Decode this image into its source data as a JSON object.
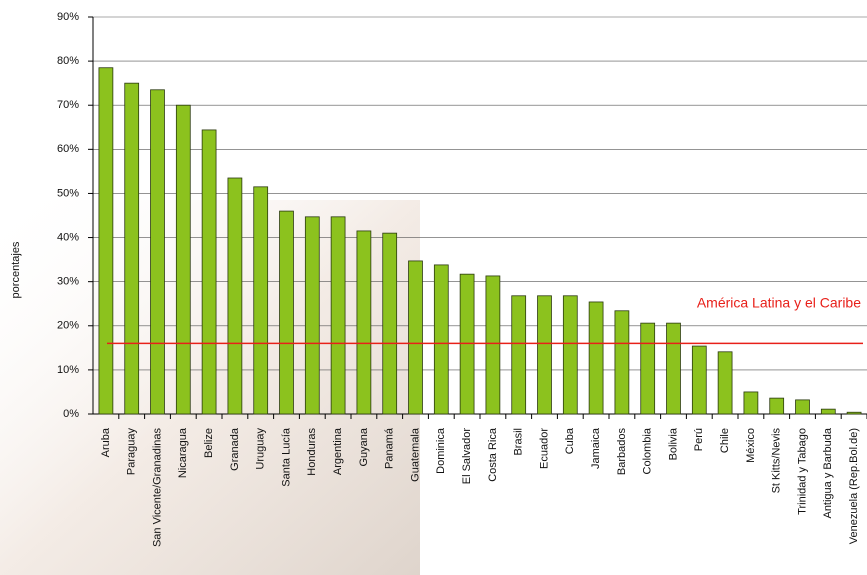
{
  "chart_data": {
    "type": "bar",
    "y_label": "porcentajes",
    "categories": [
      "Aruba",
      "Paraguay",
      "San Vicente/Granadinas",
      "Nicaragua",
      "Belize",
      "Granada",
      "Uruguay",
      "Santa Lucía",
      "Honduras",
      "Argentina",
      "Guyana",
      "Panamá",
      "Guatemala",
      "Dominica",
      "El Salvador",
      "Costa Rica",
      "Brasil",
      "Ecuador",
      "Cuba",
      "Jamaica",
      "Barbados",
      "Colombia",
      "Bolivia",
      "Perú",
      "Chile",
      "México",
      "St Kitts/Nevis",
      "Trinidad y Tabago",
      "Antigua y Barbuda",
      "Venezuela (Rep.Bol.de)"
    ],
    "values": [
      78.5,
      75,
      73.5,
      70,
      64.4,
      53.5,
      51.5,
      46,
      44.7,
      44.7,
      41.5,
      41,
      34.7,
      33.8,
      31.7,
      31.3,
      26.8,
      26.8,
      26.8,
      25.4,
      23.4,
      20.6,
      20.6,
      15.4,
      14.1,
      5,
      3.6,
      3.2,
      1.1,
      0.4
    ],
    "color": "#8cc21e",
    "ylim": [
      0,
      90
    ],
    "yticks": [
      {
        "value": 0,
        "label": "0%"
      },
      {
        "value": 10,
        "label": "10%"
      },
      {
        "value": 20,
        "label": "20%"
      },
      {
        "value": 30,
        "label": "30%"
      },
      {
        "value": 40,
        "label": "40%"
      },
      {
        "value": 50,
        "label": "50%"
      },
      {
        "value": 60,
        "label": "60%"
      },
      {
        "value": 70,
        "label": "70%"
      },
      {
        "value": 80,
        "label": "80%"
      },
      {
        "value": 90,
        "label": "90%"
      }
    ],
    "grid": true,
    "reference_line": {
      "value": 16,
      "label": "América Latina y el Caribe",
      "color": "#e8201a"
    }
  }
}
